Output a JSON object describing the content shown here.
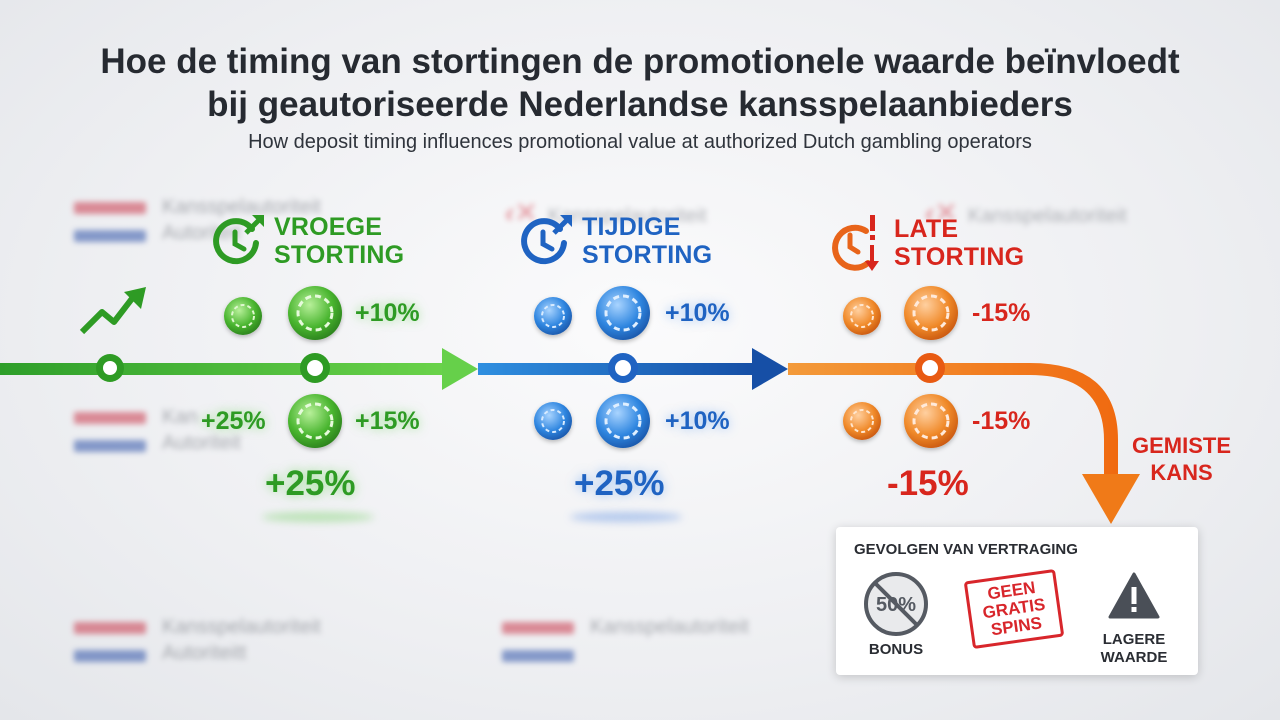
{
  "title_line1": "Hoe de timing van stortingen de promotionele waarde beïnvloedt",
  "title_line2": "bij geautoriseerde Nederlandse kansspelaanbieders",
  "subtitle": "How deposit timing influences promotional value at authorized Dutch gambling operators",
  "watermarks": {
    "brand": "Kansspelautoriteit",
    "brand_variant_1": "Autoriteit",
    "brand_variant_2": "Autoriteit",
    "brand_variant_3": "Autoriteitt",
    "brand_short": "Kan"
  },
  "colors": {
    "early": "#2e9b24",
    "timely": "#1f63c2",
    "late": "#d8261d",
    "late_arrow": "#f07a18"
  },
  "stages": [
    {
      "label_line1": "VROEGE",
      "label_line2": "STORTING",
      "icon": "clock-up-arrow-icon",
      "top_pct": "+10%",
      "left_pct": "+25%",
      "right_pct": "+15%",
      "total": "+25%"
    },
    {
      "label_line1": "TIJDIGE",
      "label_line2": "STORTING",
      "icon": "clock-up-arrow-icon",
      "top_pct": "+10%",
      "right_pct": "+10%",
      "total": "+25%"
    },
    {
      "label_line1": "LATE",
      "label_line2": "STORTING",
      "icon": "clock-warning-down-arrow-icon",
      "top_pct": "-15%",
      "right_pct": "-15%",
      "total": "-15%"
    }
  ],
  "missed": {
    "line1": "GEMISTE",
    "line2": "KANS"
  },
  "consequences": {
    "title": "GEVOLGEN VAN VERTRAGING",
    "bonus_icon_text": "50%",
    "bonus_label": "BONUS",
    "stamp_line1": "GEEN",
    "stamp_line2": "GRATIS",
    "stamp_line3": "SPINS",
    "warning_line1": "LAGERE",
    "warning_line2": "WAARDE"
  }
}
